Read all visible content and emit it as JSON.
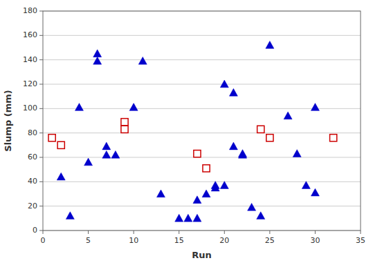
{
  "chart_data": {
    "type": "scatter",
    "xlabel": "Run",
    "ylabel": "Slump (mm)",
    "xlim": [
      0,
      35
    ],
    "ylim": [
      0,
      180
    ],
    "xticks": [
      0,
      5,
      10,
      15,
      20,
      25,
      30,
      35
    ],
    "yticks": [
      0,
      20,
      40,
      60,
      80,
      100,
      120,
      140,
      160,
      180
    ],
    "grid": "y",
    "series": [
      {
        "color": "#0000cc",
        "marker": "triangle",
        "x": [
          2,
          3,
          4,
          5,
          6,
          6,
          7,
          7,
          8,
          10,
          11,
          13,
          15,
          16,
          17,
          17,
          18,
          19,
          19,
          20,
          20,
          21,
          21,
          22,
          22,
          23,
          24,
          25,
          27,
          28,
          29,
          30,
          30
        ],
        "values": [
          44,
          12,
          101,
          56,
          145,
          139,
          69,
          62,
          62,
          101,
          139,
          30,
          10,
          10,
          10,
          25,
          30,
          35,
          37,
          37,
          120,
          113,
          69,
          63,
          62,
          19,
          12,
          152,
          94,
          63,
          37,
          31,
          101
        ]
      },
      {
        "color": "#cc0000",
        "marker": "hollow-square",
        "x": [
          1,
          2,
          9,
          9,
          17,
          18,
          24,
          25,
          32
        ],
        "values": [
          76,
          70,
          89,
          83,
          63,
          51,
          83,
          76,
          76
        ]
      }
    ]
  }
}
